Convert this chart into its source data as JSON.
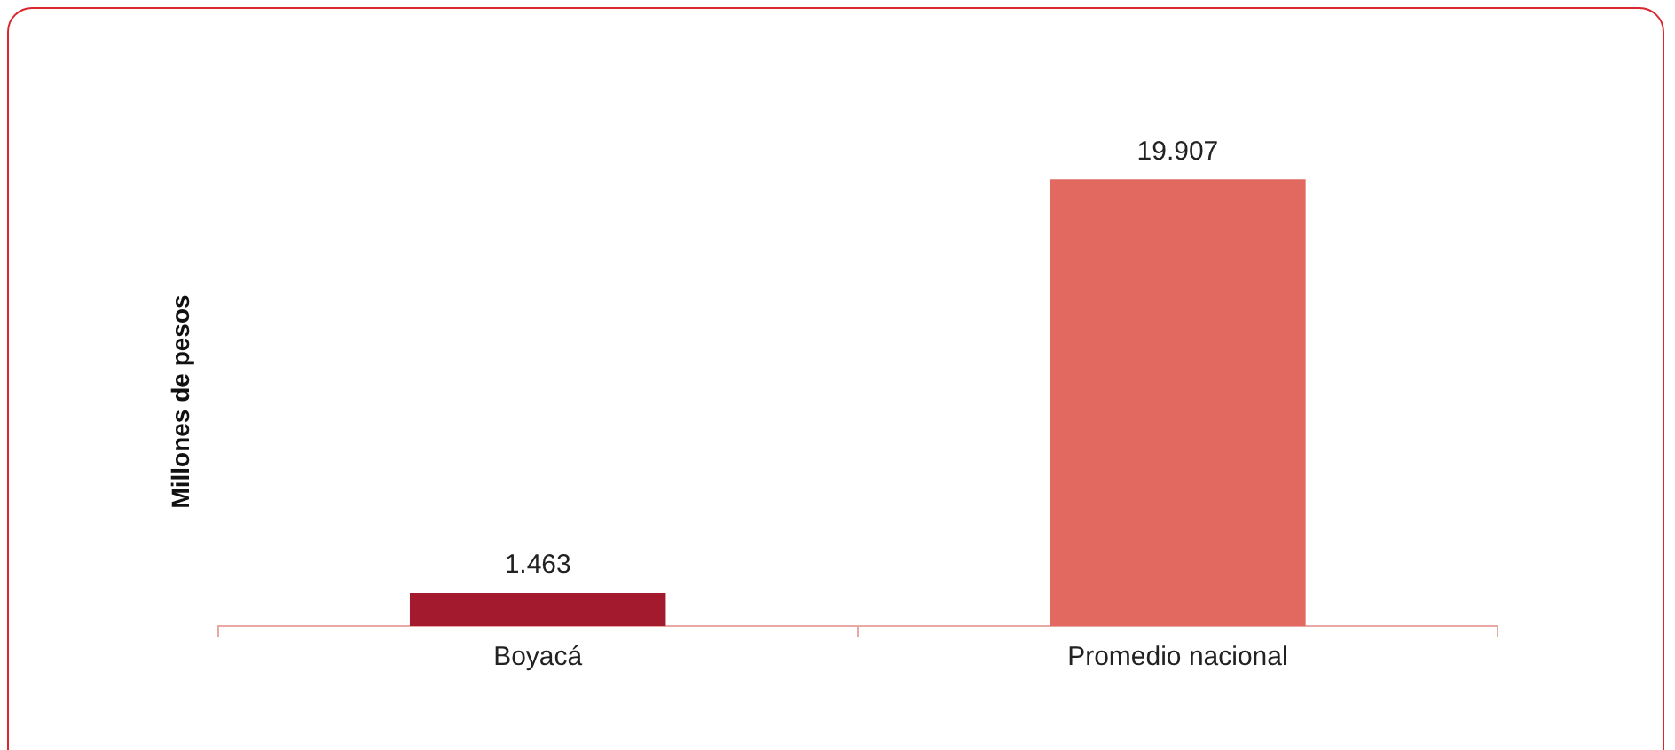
{
  "chart_data": {
    "type": "bar",
    "ylabel": "Millones de pesos",
    "categories": [
      "Boyacá",
      "Promedio nacional"
    ],
    "values": [
      1.463,
      19.907
    ],
    "colors": [
      "#a3192e",
      "#e2695f"
    ],
    "data_labels": true,
    "tick_labels": "x",
    "grid": false,
    "legend": false
  }
}
